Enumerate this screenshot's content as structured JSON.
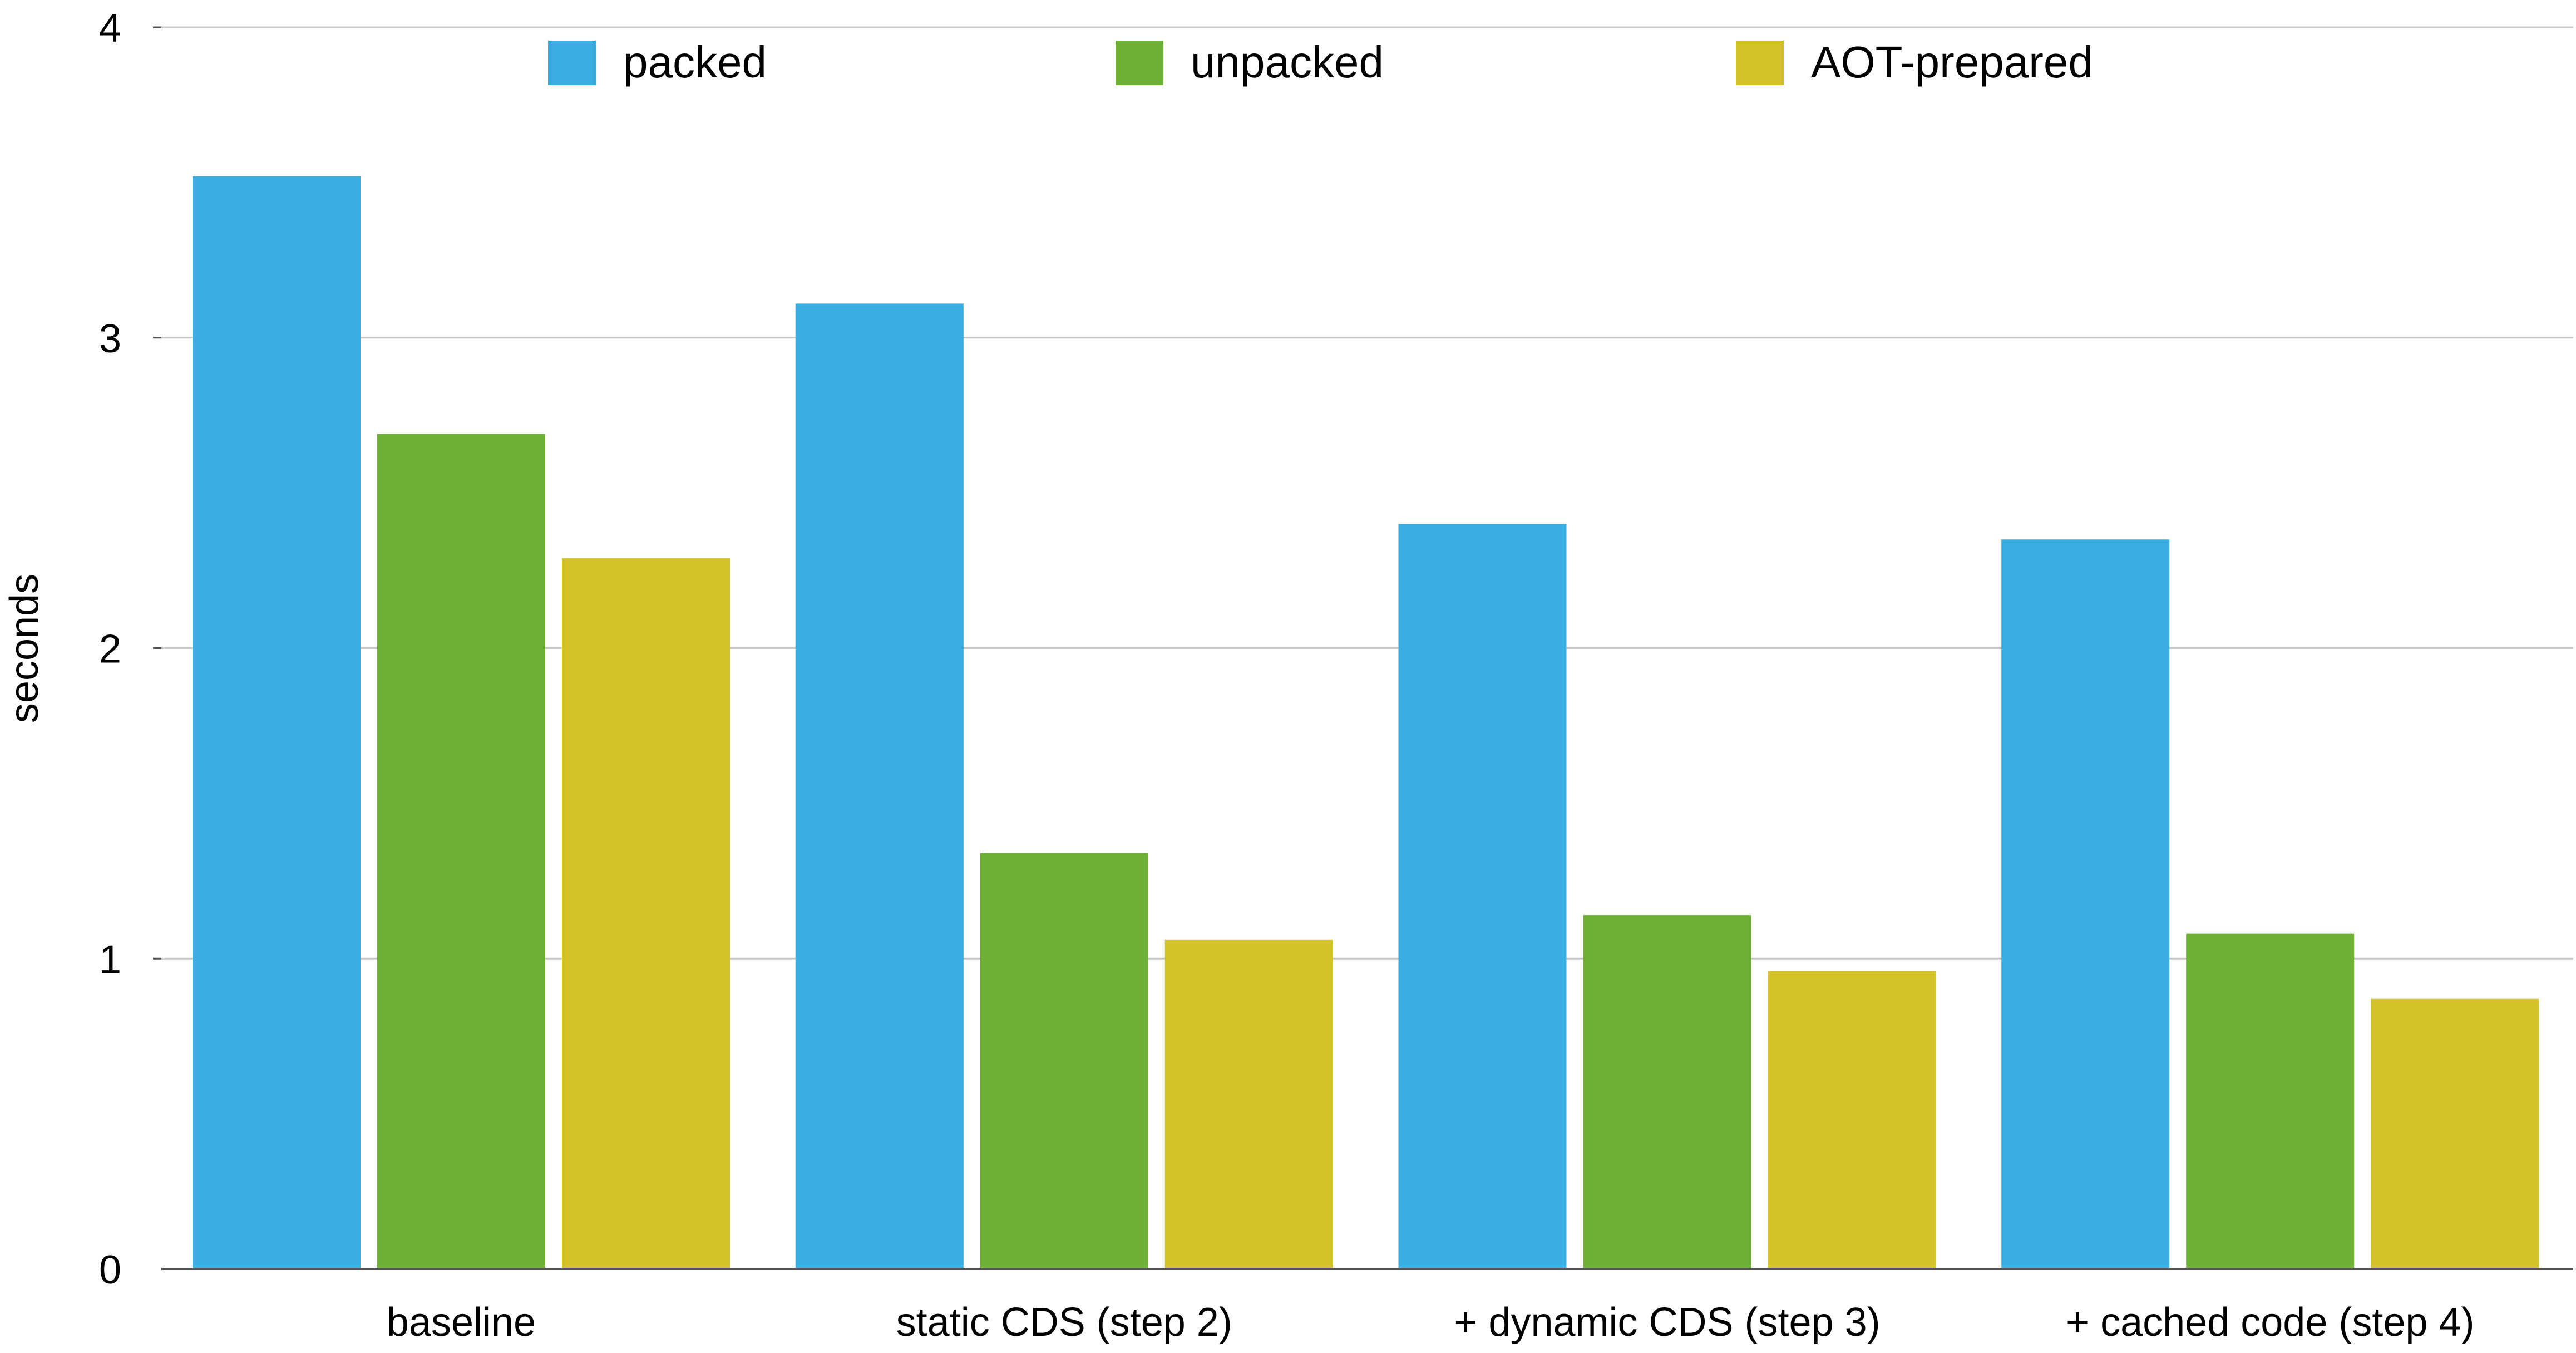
{
  "chart_data": {
    "type": "bar",
    "title": "",
    "xlabel": "",
    "ylabel": "seconds",
    "ylim": [
      0,
      4
    ],
    "yticks": [
      0,
      1,
      2,
      3,
      4
    ],
    "grid": true,
    "legend_position": "top",
    "categories": [
      "baseline",
      "static CDS (step 2)",
      "+ dynamic CDS (step 3)",
      "+ cached code (step 4)"
    ],
    "series": [
      {
        "name": "packed",
        "color": "#3AAEE0",
        "values": [
          3.52,
          3.11,
          2.4,
          2.35
        ]
      },
      {
        "name": "unpacked",
        "color": "#6DAE35",
        "values": [
          2.69,
          1.34,
          1.14,
          1.08
        ]
      },
      {
        "name": "AOT-prepared",
        "color": "#D4C22A",
        "values": [
          2.29,
          1.06,
          0.96,
          0.87
        ]
      }
    ]
  }
}
